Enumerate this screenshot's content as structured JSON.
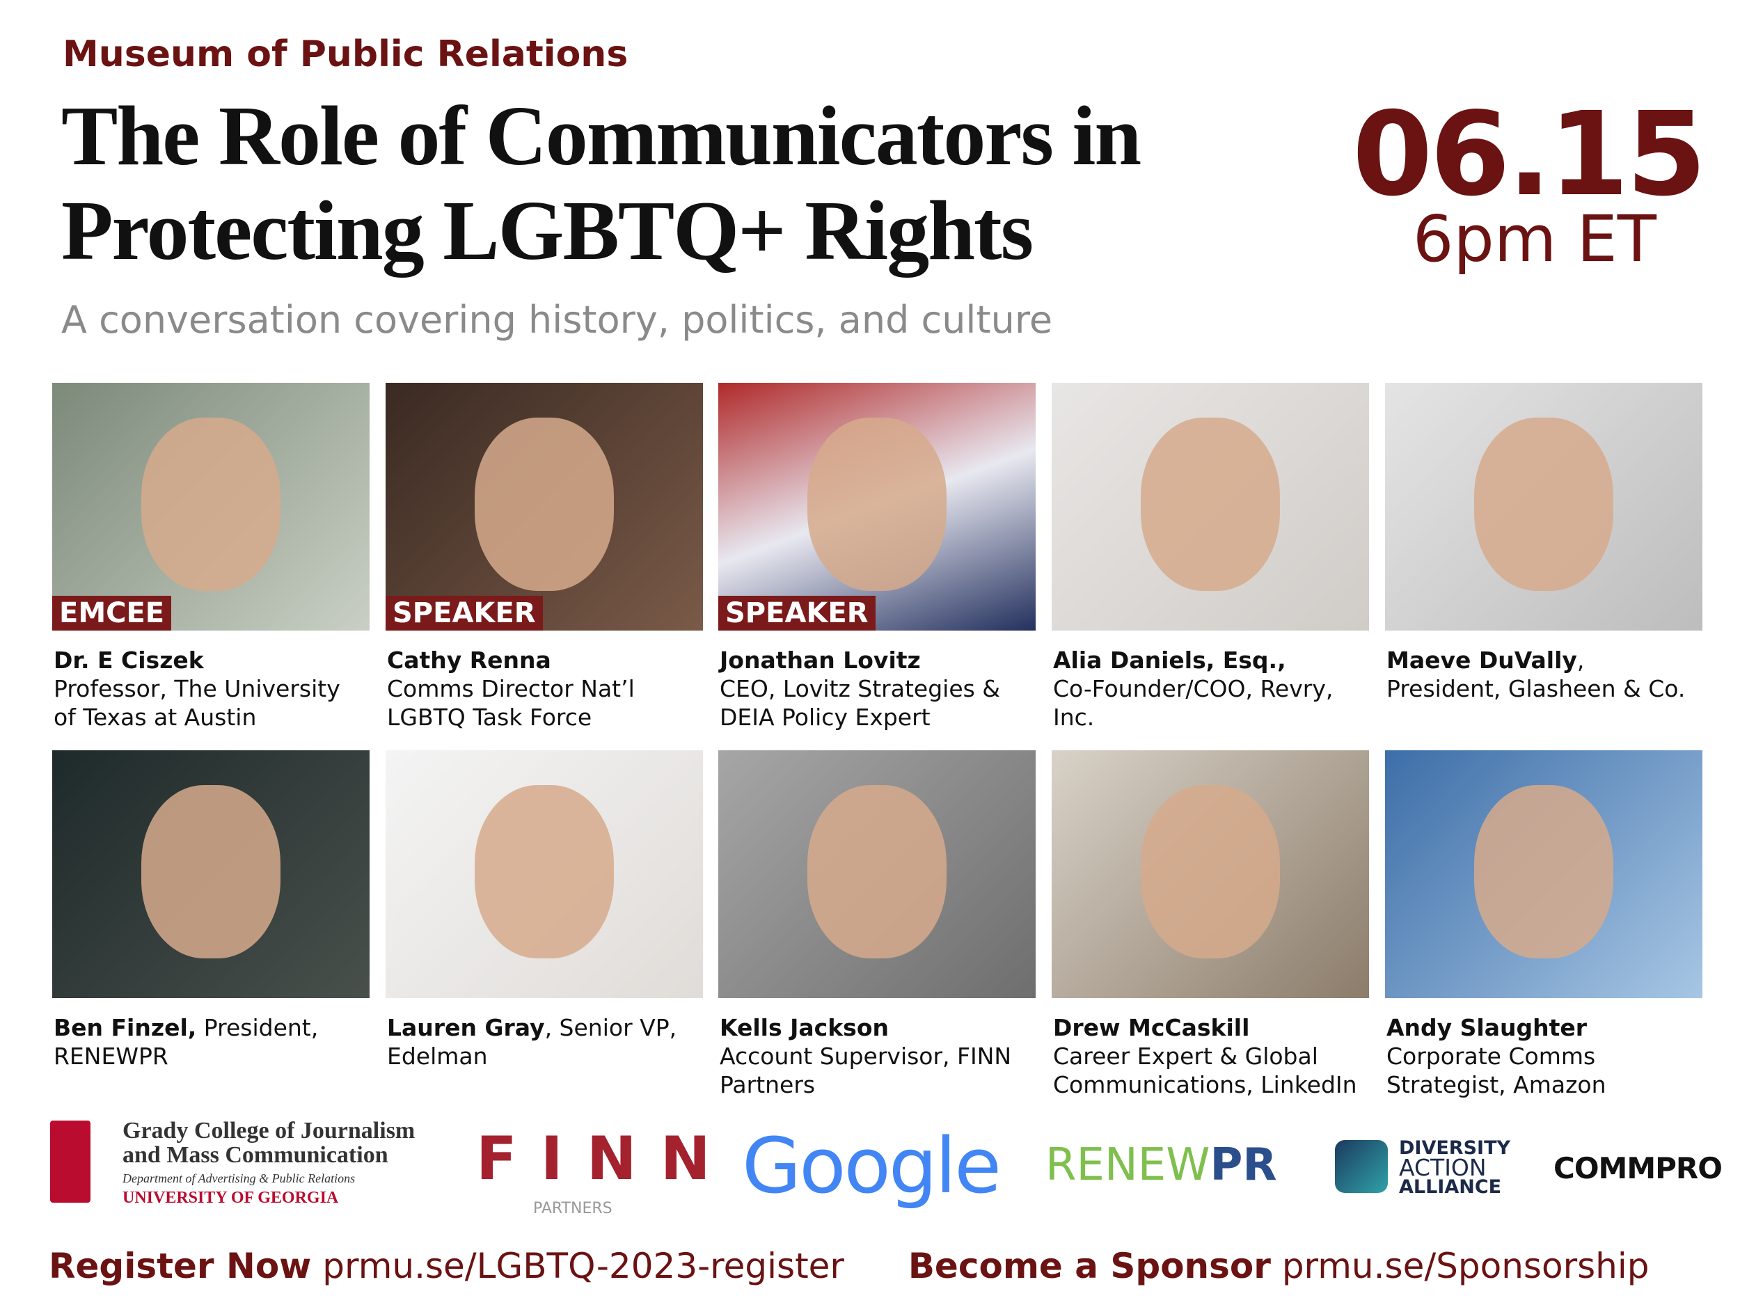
{
  "header": {
    "org": "Museum of Public Relations",
    "title_lines": [
      "The Role of Communicators in",
      "Protecting LGBTQ+ Rights"
    ],
    "date": "06.15",
    "time": "6pm ET",
    "subtitle": "A conversation covering history, politics, and culture"
  },
  "speakers": [
    {
      "role": "EMCEE",
      "name": "Dr. E Ciszek",
      "detail": "Professor, The University of Texas at Austin"
    },
    {
      "role": "SPEAKER",
      "name": "Cathy Renna",
      "detail": "Comms Director Nat’l LGBTQ Task Force"
    },
    {
      "role": "SPEAKER",
      "name": "Jonathan Lovitz",
      "detail": "CEO, Lovitz Strategies & DEIA Policy Expert"
    },
    {
      "name": "Alia Daniels, Esq.,",
      "detail": "Co-Founder/COO, Revry, Inc."
    },
    {
      "name": "Maeve DuVally",
      "detail": ", President, Glasheen & Co."
    },
    {
      "name": "Ben Finzel,",
      "detail": " President, RENEWPR"
    },
    {
      "name": "Lauren Gray",
      "detail": ", Senior VP, Edelman"
    },
    {
      "name": "Kells Jackson",
      "detail": "Account Supervisor, FINN Partners"
    },
    {
      "name": "Drew McCaskill",
      "detail": "Career Expert & Global Communications, LinkedIn"
    },
    {
      "name": "Andy Slaughter",
      "detail": "Corporate Comms Strategist, Amazon"
    }
  ],
  "sponsors": {
    "grady": {
      "line1": "Grady College of Journalism",
      "line2": "and Mass Communication",
      "dept": "Department of Advertising & Public Relations",
      "univ": "UNIVERSITY OF GEORGIA"
    },
    "finn": {
      "name": "FINN",
      "sub": "PARTNERS"
    },
    "google": "Google",
    "renew": {
      "a": "RENEW",
      "b": "PR"
    },
    "daa": [
      "DIVERSITY",
      "ACTION",
      "ALLIANCE"
    ],
    "commpro": "COMMPRO"
  },
  "footer": {
    "register_label": "Register Now",
    "register_url": "prmu.se/LGBTQ-2023-register",
    "sponsor_label": "Become a Sponsor",
    "sponsor_url": "prmu.se/Sponsorship"
  }
}
